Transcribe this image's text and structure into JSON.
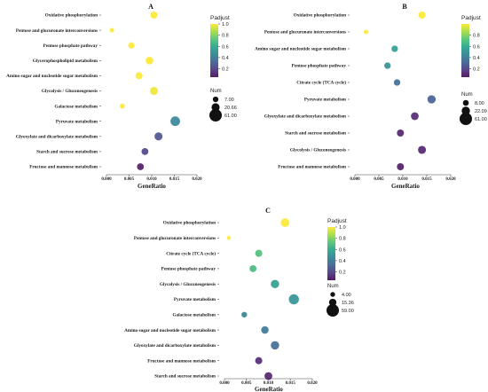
{
  "colors": {
    "colormap": [
      "#440154",
      "#46327e",
      "#365c8d",
      "#277f8e",
      "#1fa187",
      "#4ac16d",
      "#a0da39",
      "#fde725"
    ],
    "text": "#1a1a1a"
  },
  "chart_data": [
    {
      "panel": "A",
      "type": "scatter",
      "xlabel": "GeneRatio",
      "xlim": [
        0.0,
        0.02
      ],
      "xticks": [
        "0.000",
        "0.005",
        "0.010",
        "0.015",
        "0.020"
      ],
      "color_legend": {
        "title": "Padjust",
        "ticks": [
          "1.0",
          "0.8",
          "0.6",
          "0.4",
          "0.2"
        ],
        "range": [
          0.05,
          1.0
        ]
      },
      "size_legend": {
        "title": "Num",
        "labels": [
          "7.00",
          "20.66",
          "61.00"
        ],
        "values": [
          7,
          20.66,
          61
        ]
      },
      "points": [
        {
          "term": "Oxidative phosphorylation",
          "gene_ratio": 0.0105,
          "num": 14,
          "padjust": 1.0
        },
        {
          "term": "Pentose and glucuronate interconversions",
          "gene_ratio": 0.0012,
          "num": 3,
          "padjust": 1.0
        },
        {
          "term": "Pentose phosphate pathway",
          "gene_ratio": 0.0055,
          "num": 10,
          "padjust": 1.0
        },
        {
          "term": "Glycerophospholipid metabolism",
          "gene_ratio": 0.0095,
          "num": 18,
          "padjust": 1.0
        },
        {
          "term": "Amino sugar and nucleotide sugar metabolism",
          "gene_ratio": 0.0072,
          "num": 14,
          "padjust": 1.0
        },
        {
          "term": "Glycolysis / Gluconeogenesis",
          "gene_ratio": 0.0105,
          "num": 20,
          "padjust": 0.98
        },
        {
          "term": "Galactose metabolism",
          "gene_ratio": 0.0035,
          "num": 5,
          "padjust": 1.0
        },
        {
          "term": "Pyruvate metabolism",
          "gene_ratio": 0.0152,
          "num": 32,
          "padjust": 0.45
        },
        {
          "term": "Glyoxylate and dicarboxylate metabolism",
          "gene_ratio": 0.0115,
          "num": 20,
          "padjust": 0.25
        },
        {
          "term": "Starch and sucrose metabolism",
          "gene_ratio": 0.0085,
          "num": 13,
          "padjust": 0.2
        },
        {
          "term": "Fructose and mannose metabolism",
          "gene_ratio": 0.0075,
          "num": 13,
          "padjust": 0.08
        }
      ]
    },
    {
      "panel": "B",
      "type": "scatter",
      "xlabel": "GeneRatio",
      "xlim": [
        0.0,
        0.02
      ],
      "xticks": [
        "0.000",
        "0.005",
        "0.010",
        "0.015",
        "0.020"
      ],
      "color_legend": {
        "title": "Padjust",
        "ticks": [
          "0.8",
          "0.6",
          "0.4",
          "0.2"
        ],
        "range": [
          0.05,
          1.0
        ]
      },
      "size_legend": {
        "title": "Num",
        "labels": [
          "8.00",
          "22.09",
          "61.00"
        ],
        "values": [
          8,
          22.09,
          61
        ]
      },
      "points": [
        {
          "term": "Oxidative phosphorylation",
          "gene_ratio": 0.014,
          "num": 14,
          "padjust": 1.0
        },
        {
          "term": "Pentose and glucuronate interconversions",
          "gene_ratio": 0.0023,
          "num": 3,
          "padjust": 1.0
        },
        {
          "term": "Amino sugar and nucleotide sugar metabolism",
          "gene_ratio": 0.0083,
          "num": 11,
          "padjust": 0.55
        },
        {
          "term": "Pentose phosphate pathway",
          "gene_ratio": 0.0068,
          "num": 11,
          "padjust": 0.5
        },
        {
          "term": "Citrate cycle (TCA cycle)",
          "gene_ratio": 0.0088,
          "num": 11,
          "padjust": 0.35
        },
        {
          "term": "Pyruvate metabolism",
          "gene_ratio": 0.016,
          "num": 22,
          "padjust": 0.3
        },
        {
          "term": "Glyoxylate and dicarboxylate metabolism",
          "gene_ratio": 0.0125,
          "num": 18,
          "padjust": 0.12
        },
        {
          "term": "Starch and sucrose metabolism",
          "gene_ratio": 0.0095,
          "num": 14,
          "padjust": 0.1
        },
        {
          "term": "Glycolysis / Gluconeogenesis",
          "gene_ratio": 0.014,
          "num": 20,
          "padjust": 0.1
        },
        {
          "term": "Fructose and mannose metabolism",
          "gene_ratio": 0.0095,
          "num": 14,
          "padjust": 0.08
        }
      ]
    },
    {
      "panel": "C",
      "type": "scatter",
      "xlabel": "GeneRatio",
      "xlim": [
        0.0,
        0.02
      ],
      "xticks": [
        "0.000",
        "0.005",
        "0.010",
        "0.015",
        "0.020"
      ],
      "color_legend": {
        "title": "Padjust",
        "ticks": [
          "1.0",
          "0.8",
          "0.6",
          "0.4",
          "0.2"
        ],
        "range": [
          0.05,
          1.0
        ]
      },
      "size_legend": {
        "title": "Num",
        "labels": [
          "4.00",
          "15.36",
          "59.00"
        ],
        "values": [
          4,
          15.36,
          59
        ]
      },
      "points": [
        {
          "term": "Oxidative phosphorylation",
          "gene_ratio": 0.0138,
          "num": 24,
          "padjust": 1.0
        },
        {
          "term": "Pentose and glucuronate interconversions",
          "gene_ratio": 0.001,
          "num": 2,
          "padjust": 1.0
        },
        {
          "term": "Citrate cycle (TCA cycle)",
          "gene_ratio": 0.0078,
          "num": 14,
          "padjust": 0.7
        },
        {
          "term": "Pentose phosphate pathway",
          "gene_ratio": 0.0065,
          "num": 13,
          "padjust": 0.68
        },
        {
          "term": "Glycolysis / Gluconeogenesis",
          "gene_ratio": 0.0115,
          "num": 22,
          "padjust": 0.55
        },
        {
          "term": "Pyruvate metabolism",
          "gene_ratio": 0.0158,
          "num": 36,
          "padjust": 0.5
        },
        {
          "term": "Galactose metabolism",
          "gene_ratio": 0.0045,
          "num": 7,
          "padjust": 0.45
        },
        {
          "term": "Amino sugar and nucleotide sugar metabolism",
          "gene_ratio": 0.0092,
          "num": 16,
          "padjust": 0.4
        },
        {
          "term": "Glyoxylate and dicarboxylate metabolism",
          "gene_ratio": 0.0115,
          "num": 22,
          "padjust": 0.35
        },
        {
          "term": "Fructose and mannose metabolism",
          "gene_ratio": 0.0078,
          "num": 14,
          "padjust": 0.12
        },
        {
          "term": "Starch and sucrose metabolism",
          "gene_ratio": 0.01,
          "num": 18,
          "padjust": 0.1
        }
      ]
    }
  ]
}
